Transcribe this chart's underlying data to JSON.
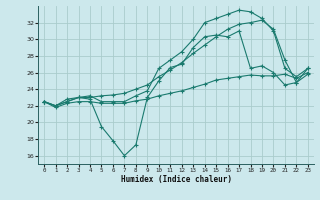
{
  "xlabel": "Humidex (Indice chaleur)",
  "bg_color": "#cce8ec",
  "grid_color": "#aacccc",
  "line_color": "#1a7a6e",
  "xlim": [
    -0.5,
    23.5
  ],
  "ylim": [
    15.0,
    34.0
  ],
  "yticks": [
    16,
    18,
    20,
    22,
    24,
    26,
    28,
    30,
    32
  ],
  "xticks": [
    0,
    1,
    2,
    3,
    4,
    5,
    6,
    7,
    8,
    9,
    10,
    11,
    12,
    13,
    14,
    15,
    16,
    17,
    18,
    19,
    20,
    21,
    22,
    23
  ],
  "line1_x": [
    0,
    1,
    2,
    3,
    4,
    5,
    6,
    7,
    8,
    9,
    10,
    11,
    12,
    13,
    14,
    15,
    16,
    17,
    18,
    19,
    20,
    21,
    22,
    23
  ],
  "line1_y": [
    22.5,
    21.8,
    22.3,
    22.5,
    22.5,
    22.3,
    22.3,
    22.3,
    22.6,
    22.8,
    23.2,
    23.5,
    23.8,
    24.2,
    24.6,
    25.1,
    25.3,
    25.5,
    25.7,
    25.6,
    25.6,
    25.8,
    25.3,
    26.0
  ],
  "line2_x": [
    0,
    1,
    2,
    3,
    4,
    5,
    6,
    7,
    8,
    9,
    10,
    11,
    12,
    13,
    14,
    15,
    16,
    17,
    18,
    19,
    20,
    21,
    22,
    23
  ],
  "line2_y": [
    22.5,
    22.0,
    22.5,
    23.0,
    22.8,
    19.5,
    17.8,
    16.0,
    17.3,
    23.0,
    25.0,
    26.6,
    27.0,
    29.0,
    30.3,
    30.5,
    30.3,
    31.0,
    26.5,
    26.8,
    26.0,
    24.5,
    24.8,
    25.8
  ],
  "line3_x": [
    0,
    1,
    2,
    3,
    4,
    5,
    6,
    7,
    8,
    9,
    10,
    11,
    12,
    13,
    14,
    15,
    16,
    17,
    18,
    19,
    20,
    21,
    22,
    23
  ],
  "line3_y": [
    22.5,
    22.0,
    22.8,
    23.0,
    23.2,
    22.5,
    22.5,
    22.5,
    23.2,
    23.8,
    26.5,
    27.5,
    28.5,
    30.0,
    32.0,
    32.5,
    33.0,
    33.5,
    33.3,
    32.5,
    31.0,
    26.5,
    25.5,
    26.5
  ],
  "line4_x": [
    0,
    1,
    2,
    3,
    4,
    5,
    6,
    7,
    8,
    9,
    10,
    11,
    12,
    13,
    14,
    15,
    16,
    17,
    18,
    19,
    20,
    21,
    22,
    23
  ],
  "line4_y": [
    22.5,
    22.0,
    22.5,
    23.0,
    23.0,
    23.2,
    23.3,
    23.5,
    24.0,
    24.5,
    25.5,
    26.3,
    27.2,
    28.3,
    29.3,
    30.3,
    31.2,
    31.8,
    32.0,
    32.3,
    31.2,
    27.5,
    24.8,
    26.5
  ]
}
